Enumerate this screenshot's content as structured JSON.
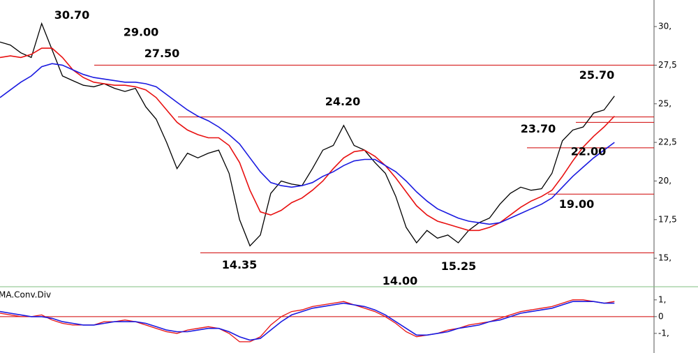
{
  "chart_data": [
    {
      "type": "line",
      "ylim": [
        13.2,
        31.72
      ],
      "xlim": [
        0,
        62.8
      ],
      "yticks": [
        {
          "value": 30,
          "label": "30,"
        },
        {
          "value": 27.5,
          "label": "27,5"
        },
        {
          "value": 25,
          "label": "25,"
        },
        {
          "value": 22.5,
          "label": "22,5"
        },
        {
          "value": 20,
          "label": "20,"
        },
        {
          "value": 17.5,
          "label": "17,5"
        },
        {
          "value": 15,
          "label": "15,"
        }
      ],
      "series": [
        {
          "color": "#000000",
          "values": [
            29.0,
            28.8,
            28.3,
            28.0,
            30.2,
            28.5,
            26.8,
            26.5,
            26.2,
            26.1,
            26.3,
            26.0,
            25.8,
            26.0,
            24.8,
            24.0,
            22.5,
            20.8,
            21.8,
            21.5,
            21.8,
            22.0,
            20.5,
            17.5,
            15.8,
            16.5,
            19.2,
            20.0,
            19.8,
            19.7,
            20.8,
            22.0,
            22.3,
            23.6,
            22.3,
            22.0,
            21.2,
            20.5,
            19.0,
            17.0,
            16.0,
            16.8,
            16.3,
            16.5,
            16.0,
            16.8,
            17.3,
            17.6,
            18.5,
            19.2,
            19.6,
            19.4,
            19.5,
            20.5,
            22.6,
            23.3,
            23.5,
            24.4,
            24.6,
            25.5
          ]
        },
        {
          "color": "#e81010",
          "values": [
            28.0,
            28.1,
            28.0,
            28.2,
            28.6,
            28.6,
            28.0,
            27.2,
            26.7,
            26.4,
            26.3,
            26.2,
            26.2,
            26.1,
            25.9,
            25.4,
            24.6,
            23.8,
            23.3,
            23.0,
            22.8,
            22.8,
            22.3,
            21.2,
            19.4,
            18.0,
            17.8,
            18.1,
            18.6,
            18.9,
            19.4,
            20.0,
            20.8,
            21.5,
            21.9,
            22.0,
            21.6,
            21.0,
            20.2,
            19.3,
            18.4,
            17.8,
            17.4,
            17.2,
            17.0,
            16.8,
            16.8,
            17.0,
            17.3,
            17.8,
            18.3,
            18.7,
            19.0,
            19.4,
            20.3,
            21.3,
            22.2,
            22.9,
            23.5,
            24.2
          ]
        },
        {
          "color": "#1a1ae0",
          "values": [
            25.4,
            25.9,
            26.4,
            26.8,
            27.4,
            27.6,
            27.5,
            27.2,
            26.9,
            26.7,
            26.6,
            26.5,
            26.4,
            26.4,
            26.3,
            26.1,
            25.6,
            25.1,
            24.6,
            24.2,
            23.9,
            23.5,
            23.0,
            22.4,
            21.5,
            20.6,
            19.9,
            19.7,
            19.6,
            19.7,
            19.9,
            20.3,
            20.6,
            21.0,
            21.3,
            21.4,
            21.4,
            21.0,
            20.6,
            20.0,
            19.3,
            18.7,
            18.2,
            17.9,
            17.6,
            17.4,
            17.3,
            17.2,
            17.3,
            17.6,
            17.9,
            18.2,
            18.5,
            18.9,
            19.6,
            20.3,
            20.9,
            21.5,
            22.0,
            22.5
          ]
        }
      ],
      "levels": [
        27.5,
        24.15,
        23.8,
        22.15,
        19.15,
        15.35
      ],
      "level_color": "#d00000",
      "annotations": [
        {
          "value": 30.7,
          "label": "30.70"
        },
        {
          "value": 29,
          "label": "29.00"
        },
        {
          "value": 27.5,
          "label": "27.50"
        },
        {
          "value": 24.2,
          "label": "24.20"
        },
        {
          "value": 14.35,
          "label": "14.35"
        },
        {
          "value": 14,
          "label": "14.00"
        },
        {
          "value": 15.25,
          "label": "15.25"
        },
        {
          "value": 25.7,
          "label": "25.70"
        },
        {
          "value": 23.7,
          "label": "23.70"
        },
        {
          "value": 22,
          "label": "22.00"
        },
        {
          "value": 19,
          "label": "19.00"
        }
      ]
    },
    {
      "type": "line",
      "title": "MA.Conv.Div",
      "ylim": [
        -2.17,
        1.7
      ],
      "xlim": [
        0,
        62.8
      ],
      "yticks": [
        {
          "value": 1,
          "label": "1,"
        },
        0,
        {
          "value": -1,
          "label": "-1,"
        }
      ],
      "zero_line_color": "#d00000",
      "series": [
        {
          "color": "#e81010",
          "values": [
            0.2,
            0.1,
            0.0,
            0.0,
            0.1,
            -0.2,
            -0.4,
            -0.5,
            -0.5,
            -0.5,
            -0.3,
            -0.3,
            -0.2,
            -0.3,
            -0.5,
            -0.7,
            -0.9,
            -1.0,
            -0.8,
            -0.7,
            -0.6,
            -0.7,
            -1.0,
            -1.5,
            -1.5,
            -1.2,
            -0.5,
            0.0,
            0.3,
            0.4,
            0.6,
            0.7,
            0.8,
            0.9,
            0.7,
            0.5,
            0.3,
            0.0,
            -0.4,
            -0.9,
            -1.2,
            -1.1,
            -1.0,
            -0.8,
            -0.7,
            -0.5,
            -0.4,
            -0.3,
            -0.1,
            0.1,
            0.3,
            0.4,
            0.5,
            0.6,
            0.8,
            1.0,
            1.0,
            0.9,
            0.8,
            0.9
          ]
        },
        {
          "color": "#1a1ae0",
          "values": [
            0.3,
            0.2,
            0.1,
            0.0,
            0.0,
            -0.1,
            -0.3,
            -0.4,
            -0.5,
            -0.5,
            -0.4,
            -0.3,
            -0.3,
            -0.3,
            -0.4,
            -0.6,
            -0.8,
            -0.9,
            -0.9,
            -0.8,
            -0.7,
            -0.7,
            -0.9,
            -1.2,
            -1.4,
            -1.3,
            -0.8,
            -0.3,
            0.1,
            0.3,
            0.5,
            0.6,
            0.7,
            0.8,
            0.7,
            0.6,
            0.4,
            0.1,
            -0.3,
            -0.7,
            -1.1,
            -1.1,
            -1.0,
            -0.9,
            -0.7,
            -0.6,
            -0.5,
            -0.3,
            -0.2,
            0.0,
            0.2,
            0.3,
            0.4,
            0.5,
            0.7,
            0.9,
            0.9,
            0.9,
            0.8,
            0.8
          ]
        }
      ]
    }
  ]
}
